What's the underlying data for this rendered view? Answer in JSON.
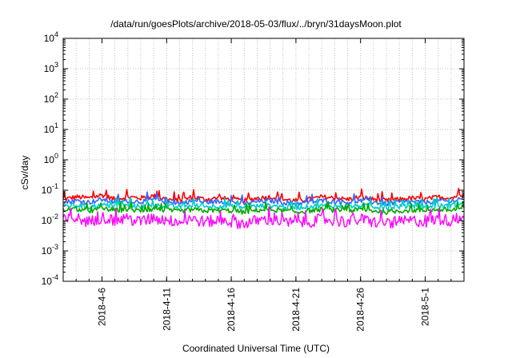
{
  "chart_data": {
    "type": "line",
    "title": "/data/run/goesPlots/archive/2018-05-03/flux/../bryn/31daysMoon.plot",
    "xlabel": "Coordinated Universal Time (UTC)",
    "ylabel": "cSv/day",
    "yscale": "log",
    "ylim": [
      0.0001,
      10000
    ],
    "xlim": [
      "2018-04-03",
      "2018-05-04"
    ],
    "grid": true,
    "y_ticks": [
      {
        "base": "10",
        "exp": "-4",
        "value": 0.0001
      },
      {
        "base": "10",
        "exp": "-3",
        "value": 0.001
      },
      {
        "base": "10",
        "exp": "-2",
        "value": 0.01
      },
      {
        "base": "10",
        "exp": "-1",
        "value": 0.1
      },
      {
        "base": "10",
        "exp": "0",
        "value": 1
      },
      {
        "base": "10",
        "exp": "1",
        "value": 10
      },
      {
        "base": "10",
        "exp": "2",
        "value": 100
      },
      {
        "base": "10",
        "exp": "3",
        "value": 1000
      },
      {
        "base": "10",
        "exp": "4",
        "value": 10000
      }
    ],
    "x_ticks": [
      {
        "label": "2018-4-6",
        "date": "2018-04-06"
      },
      {
        "label": "2018-4-11",
        "date": "2018-04-11"
      },
      {
        "label": "2018-4-16",
        "date": "2018-04-16"
      },
      {
        "label": "2018-4-21",
        "date": "2018-04-21"
      },
      {
        "label": "2018-4-26",
        "date": "2018-04-26"
      },
      {
        "label": "2018-5-1",
        "date": "2018-05-01"
      }
    ],
    "x": [
      "2018-04-03",
      "2018-04-04",
      "2018-04-05",
      "2018-04-06",
      "2018-04-07",
      "2018-04-08",
      "2018-04-09",
      "2018-04-10",
      "2018-04-11",
      "2018-04-12",
      "2018-04-13",
      "2018-04-14",
      "2018-04-15",
      "2018-04-16",
      "2018-04-17",
      "2018-04-18",
      "2018-04-19",
      "2018-04-20",
      "2018-04-21",
      "2018-04-22",
      "2018-04-23",
      "2018-04-24",
      "2018-04-25",
      "2018-04-26",
      "2018-04-27",
      "2018-04-28",
      "2018-04-29",
      "2018-04-30",
      "2018-05-01",
      "2018-05-02",
      "2018-05-03",
      "2018-05-04"
    ],
    "series": [
      {
        "color": "#ff0000",
        "values": [
          0.05,
          0.06,
          0.055,
          0.07,
          0.05,
          0.06,
          0.055,
          0.065,
          0.05,
          0.045,
          0.06,
          0.05,
          0.055,
          0.05,
          0.045,
          0.055,
          0.06,
          0.05,
          0.045,
          0.05,
          0.06,
          0.055,
          0.05,
          0.06,
          0.05,
          0.045,
          0.05,
          0.055,
          0.05,
          0.06,
          0.055,
          0.08
        ]
      },
      {
        "color": "#3366ff",
        "values": [
          0.04,
          0.045,
          0.04,
          0.05,
          0.04,
          0.045,
          0.042,
          0.05,
          0.04,
          0.037,
          0.045,
          0.04,
          0.042,
          0.04,
          0.036,
          0.042,
          0.045,
          0.04,
          0.036,
          0.04,
          0.045,
          0.042,
          0.04,
          0.045,
          0.04,
          0.036,
          0.04,
          0.042,
          0.04,
          0.045,
          0.042,
          0.06
        ]
      },
      {
        "color": "#00cccc",
        "values": [
          0.03,
          0.032,
          0.028,
          0.033,
          0.03,
          0.031,
          0.029,
          0.032,
          0.03,
          0.028,
          0.031,
          0.029,
          0.03,
          0.029,
          0.027,
          0.03,
          0.031,
          0.029,
          0.027,
          0.029,
          0.031,
          0.03,
          0.029,
          0.031,
          0.029,
          0.027,
          0.029,
          0.03,
          0.029,
          0.031,
          0.03,
          0.035
        ]
      },
      {
        "color": "#00aa00",
        "values": [
          0.022,
          0.024,
          0.02,
          0.025,
          0.022,
          0.023,
          0.021,
          0.024,
          0.022,
          0.02,
          0.023,
          0.021,
          0.022,
          0.021,
          0.019,
          0.022,
          0.023,
          0.021,
          0.019,
          0.021,
          0.023,
          0.022,
          0.021,
          0.023,
          0.021,
          0.019,
          0.021,
          0.022,
          0.021,
          0.023,
          0.022,
          0.026
        ]
      },
      {
        "color": "#ff00ff",
        "values": [
          0.01,
          0.012,
          0.009,
          0.013,
          0.01,
          0.011,
          0.009,
          0.012,
          0.01,
          0.009,
          0.011,
          0.009,
          0.01,
          0.009,
          0.008,
          0.01,
          0.011,
          0.009,
          0.008,
          0.009,
          0.011,
          0.01,
          0.009,
          0.011,
          0.009,
          0.008,
          0.009,
          0.01,
          0.009,
          0.011,
          0.01,
          0.012
        ]
      }
    ]
  }
}
